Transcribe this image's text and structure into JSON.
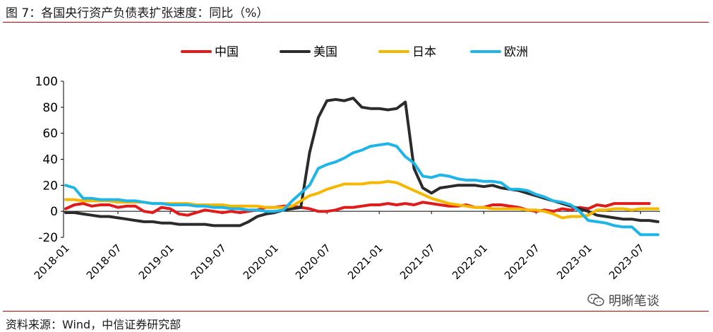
{
  "title": "图 7：各国央行资产负债表扩张速度：同比（%）",
  "source": "资料来源：Wind，中信证券研究部",
  "watermark": "明晰笔谈",
  "colors": {
    "rule": "#c00000"
  },
  "chart_data": {
    "type": "line",
    "title": "",
    "xlabel": "",
    "ylabel": "",
    "ylim": [
      -20,
      100
    ],
    "yticks": [
      100,
      80,
      60,
      40,
      20,
      0,
      -20
    ],
    "x": [
      "2018-01",
      "2018-02",
      "2018-03",
      "2018-04",
      "2018-05",
      "2018-06",
      "2018-07",
      "2018-08",
      "2018-09",
      "2018-10",
      "2018-11",
      "2018-12",
      "2019-01",
      "2019-02",
      "2019-03",
      "2019-04",
      "2019-05",
      "2019-06",
      "2019-07",
      "2019-08",
      "2019-09",
      "2019-10",
      "2019-11",
      "2019-12",
      "2020-01",
      "2020-02",
      "2020-03",
      "2020-04",
      "2020-05",
      "2020-06",
      "2020-07",
      "2020-08",
      "2020-09",
      "2020-10",
      "2020-11",
      "2020-12",
      "2021-01",
      "2021-02",
      "2021-03",
      "2021-04",
      "2021-05",
      "2021-06",
      "2021-07",
      "2021-08",
      "2021-09",
      "2021-10",
      "2021-11",
      "2021-12",
      "2022-01",
      "2022-02",
      "2022-03",
      "2022-04",
      "2022-05",
      "2022-06",
      "2022-07",
      "2022-08",
      "2022-09",
      "2022-10",
      "2022-11",
      "2022-12",
      "2023-01",
      "2023-02",
      "2023-03",
      "2023-04",
      "2023-05",
      "2023-06",
      "2023-07",
      "2023-08",
      "2023-09"
    ],
    "xticks": [
      "2018-01",
      "2018-07",
      "2019-01",
      "2019-07",
      "2020-01",
      "2020-07",
      "2021-01",
      "2021-07",
      "2022-01",
      "2022-07",
      "2023-01",
      "2023-07"
    ],
    "legend_position": "top-center",
    "series": [
      {
        "name": "中国",
        "color": "#e01b1b",
        "values": [
          2,
          5,
          6,
          4,
          5,
          5,
          3,
          4,
          4,
          0,
          -1,
          3,
          2,
          -2,
          -3,
          -1,
          1,
          0,
          -1,
          0,
          -1,
          0,
          1,
          3,
          3,
          4,
          4,
          3,
          2,
          0,
          0,
          1,
          3,
          3,
          4,
          5,
          5,
          6,
          5,
          6,
          5,
          7,
          6,
          5,
          4,
          4,
          5,
          3,
          3,
          5,
          5,
          4,
          3,
          1,
          0,
          1,
          0,
          2,
          1,
          3,
          2,
          5,
          4,
          6,
          6,
          6,
          6,
          6,
          null
        ]
      },
      {
        "name": "美国",
        "color": "#2b2b2b",
        "values": [
          -1,
          -1,
          -2,
          -3,
          -4,
          -4,
          -5,
          -6,
          -7,
          -8,
          -8,
          -9,
          -9,
          -10,
          -10,
          -10,
          -10,
          -11,
          -11,
          -11,
          -11,
          -8,
          -4,
          -2,
          -1,
          1,
          2,
          3,
          45,
          72,
          85,
          86,
          85,
          87,
          80,
          79,
          79,
          78,
          79,
          84,
          33,
          18,
          14,
          18,
          19,
          20,
          20,
          20,
          19,
          20,
          18,
          17,
          16,
          14,
          12,
          10,
          8,
          6,
          4,
          2,
          0,
          -3,
          -4,
          -5,
          -6,
          -6,
          -7,
          -7,
          -8
        ]
      },
      {
        "name": "日本",
        "color": "#f5b800",
        "values": [
          9,
          9,
          8,
          8,
          8,
          8,
          7,
          7,
          7,
          7,
          6,
          6,
          6,
          6,
          6,
          5,
          5,
          5,
          5,
          4,
          4,
          4,
          4,
          3,
          3,
          3,
          4,
          8,
          12,
          14,
          17,
          19,
          21,
          21,
          21,
          22,
          22,
          23,
          22,
          19,
          16,
          13,
          10,
          8,
          6,
          5,
          4,
          3,
          3,
          2,
          2,
          2,
          2,
          1,
          1,
          0,
          -2,
          -5,
          -4,
          -4,
          -3,
          1,
          1,
          2,
          2,
          1,
          2,
          2,
          2
        ]
      },
      {
        "name": "欧洲",
        "color": "#1fb5e8",
        "values": [
          20,
          18,
          10,
          10,
          9,
          9,
          9,
          8,
          8,
          7,
          6,
          6,
          5,
          5,
          5,
          4,
          4,
          3,
          3,
          2,
          2,
          1,
          1,
          0,
          0,
          1,
          8,
          14,
          20,
          33,
          36,
          38,
          41,
          45,
          47,
          50,
          51,
          52,
          50,
          42,
          37,
          27,
          26,
          28,
          27,
          25,
          24,
          24,
          23,
          23,
          22,
          17,
          17,
          16,
          13,
          11,
          8,
          7,
          5,
          0,
          -7,
          -8,
          -9,
          -11,
          -12,
          -12,
          -18,
          -18,
          -18
        ]
      }
    ]
  }
}
